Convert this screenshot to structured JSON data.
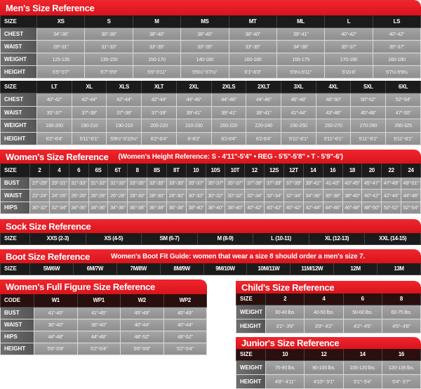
{
  "colors": {
    "title_red": "#e31b23",
    "header_black": "#1b1b1b",
    "cell_gray": "#9a9a9a"
  },
  "mens": {
    "title": "Men's Size Reference",
    "table1": {
      "header": [
        "SIZE",
        "XS",
        "S",
        "M",
        "MS",
        "MT",
        "ML",
        "L",
        "LS"
      ],
      "rows": [
        [
          "CHEST",
          "34\"-36\"",
          "36\"-38\"",
          "38\"-40\"",
          "38\"-40\"",
          "38\"-40\"",
          "39\"-41\"",
          "40\"-42\"",
          "40\"-42\""
        ],
        [
          "WAIST",
          "29\"-31\"",
          "31\"-33\"",
          "33\"-35\"",
          "33\"-35\"",
          "33\"-35\"",
          "34\"-36\"",
          "35\"-37\"",
          "35\"-37\""
        ],
        [
          "WEIGHT",
          "125-135",
          "135-150",
          "150-170",
          "140-160",
          "160-180",
          "155-175",
          "170-190",
          "160-180"
        ],
        [
          "HEIGHT",
          "5'5\"-5'7\"",
          "5'7\"-5'9\"",
          "5'9\"-5'11\"",
          "5'5½\"-5'7½\"",
          "6'1\"-6'3\"",
          "5'9½-5'11\"",
          "5'10-6'",
          "5'7½-5'9½"
        ]
      ]
    },
    "table2": {
      "header": [
        "SIZE",
        "LT",
        "XL",
        "XLS",
        "XLT",
        "2XL",
        "2XLS",
        "2XLT",
        "3XL",
        "4XL",
        "5XL",
        "6XL"
      ],
      "rows": [
        [
          "CHEST",
          "40\"-42\"",
          "42\"-44\"",
          "42\"-44\"",
          "42\"-44\"",
          "44\"-46\"",
          "44\"-46\"",
          "44\"-46\"",
          "46\"-48\"",
          "48\"-50\"",
          "50\"-52\"",
          "52\"-54\""
        ],
        [
          "WAIST",
          "35\"-37\"",
          "37\"-39\"",
          "37\"-39\"",
          "37\"-39\"",
          "39\"-41\"",
          "39\"-41\"",
          "39\"-41\"",
          "41\"-44\"",
          "43\"-46\"",
          "45\"-48\"",
          "47\"-50\""
        ],
        [
          "WEIGHT",
          "190-200",
          "190-210",
          "190-210",
          "200-220",
          "210-230",
          "200-220",
          "220-240",
          "230-250",
          "250-270",
          "270-290",
          "290-325"
        ],
        [
          "HEIGHT",
          "6'2\"-6'4\"",
          "5'11\"-6'1\"",
          "5'8½\"-5'10½\"",
          "6'2\"-6'4\"",
          "6'-6'2\"",
          "6'2-6'4\"",
          "6'2-6'4\"",
          "5'11\"-6'1\"",
          "5'11\"-6'1\"",
          "5'11\"-6'1\"",
          "5'11\"-6'1\""
        ]
      ]
    }
  },
  "womens": {
    "title": "Women's Size Reference",
    "subtitle": "(Women's Height Reference: S - 4'11\"-5'4\" • REG - 5'5\"-5'8\" • T - 5'9\"-6')",
    "table": {
      "header": [
        "SIZE",
        "2",
        "4",
        "6",
        "6S",
        "6T",
        "8",
        "8S",
        "8T",
        "10",
        "10S",
        "10T",
        "12",
        "12S",
        "12T",
        "14",
        "16",
        "18",
        "20",
        "22",
        "24"
      ],
      "rows": [
        [
          "BUST",
          "27\"-29\"",
          "29\"-31\"",
          "31\"-33\"",
          "31\"-33\"",
          "31\"-33\"",
          "33\"-35\"",
          "33\"-35\"",
          "33\"-35\"",
          "35\"-37\"",
          "35\"-37\"",
          "35\"-37\"",
          "37\"-39\"",
          "37\"-39\"",
          "37\"-39\"",
          "39\"-41\"",
          "41-43\"",
          "43\"-45\"",
          "45\"-47\"",
          "47\"-49\"",
          "49\"-51\""
        ],
        [
          "WAIST",
          "22\"-24\"",
          "24\"-26\"",
          "26\"-28\"",
          "26\"-28\"",
          "26\"-28\"",
          "28\"-30\"",
          "28\"-30\"",
          "28\"-30\"",
          "30\"-32\"",
          "30\"-32\"",
          "30\"-32\"",
          "32\"-34\"",
          "32\"-34\"",
          "32\"-34\"",
          "34\"-36\"",
          "36\"-38\"",
          "38\"-40\"",
          "40\"-42\"",
          "42\"-44\"",
          "44\"-46\""
        ],
        [
          "HIPS",
          "30\"-32\"",
          "32\"-34\"",
          "34\"-36\"",
          "34\"-36\"",
          "34\"-36\"",
          "36\"-38\"",
          "36\"-38\"",
          "36\"-38\"",
          "38\"-40\"",
          "38\"-40\"",
          "38\"-40\"",
          "40\"-42\"",
          "40\"-42\"",
          "40\"-42\"",
          "42\"-44\"",
          "44\"-46\"",
          "46\"-48\"",
          "48\"-50\"",
          "50\"-52\"",
          "52\"-54\""
        ]
      ]
    }
  },
  "sock": {
    "title": "Sock Size Reference",
    "table": {
      "header": [
        "SIZE",
        "XXS (2-3)",
        "XS (4-5)",
        "SM (6-7)",
        "M (8-9)",
        "L (10-11)",
        "XL (12-13)",
        "XXL (14-15)"
      ],
      "rows": []
    }
  },
  "boot": {
    "title": "Boot Size Reference",
    "subtitle": "Women's Boot Fit Guide: women that wear a size 8 should order a men's size 7.",
    "table": {
      "header": [
        "SIZE",
        "5M/6W",
        "6M/7W",
        "7M/8W",
        "8M/9W",
        "9M/10W",
        "10M/11W",
        "11M/12W",
        "12M",
        "13M"
      ],
      "rows": []
    }
  },
  "full_figure": {
    "title": "Women's Full Figure Size Reference",
    "table": {
      "header": [
        "CODE",
        "W1",
        "WP1",
        "W2",
        "WP2"
      ],
      "rows": [
        [
          "BUST",
          "41\"-45\"",
          "41\"-45\"",
          "45\"-49\"",
          "45\"-49\""
        ],
        [
          "WAIST",
          "36\"-40\"",
          "36\"-40\"",
          "40\"-44\"",
          "40\"-44\""
        ],
        [
          "HIPS",
          "44\"-48\"",
          "44\"-48\"",
          "48\"-52\"",
          "48\"-52\""
        ],
        [
          "HEIGHT",
          "5'6\"-5'8\"",
          "5'2\"-5'4\"",
          "5'6\"-5'8\"",
          "5'2\"-5'4\""
        ]
      ]
    }
  },
  "child": {
    "title": "Child's Size Reference",
    "table": {
      "header": [
        "SIZE",
        "2",
        "4",
        "6",
        "8"
      ],
      "rows": [
        [
          "WEIGHT",
          "30-40 lbs.",
          "40-50 lbs.",
          "50-60 lbs.",
          "60-75 lbs."
        ],
        [
          "HEIGHT",
          "3'1\"- 3'9\"",
          "3'9\"- 4'2\"",
          "4'2\"- 4'5\"",
          "4'5\"- 4'8\""
        ]
      ]
    }
  },
  "junior": {
    "title": "Junior's Size Reference",
    "table": {
      "header": [
        "SIZE",
        "10",
        "12",
        "14",
        "16"
      ],
      "rows": [
        [
          "WEIGHT",
          "75-90 lbs.",
          "90-105 lbs.",
          "105-120 lbs.",
          "120-135 lbs."
        ],
        [
          "HEIGHT",
          "4'8\"- 4'11\"",
          "4'10\"- 5'1\"",
          "5'1\"- 5'4\"",
          "5'4\"- 5'7\""
        ]
      ]
    }
  }
}
